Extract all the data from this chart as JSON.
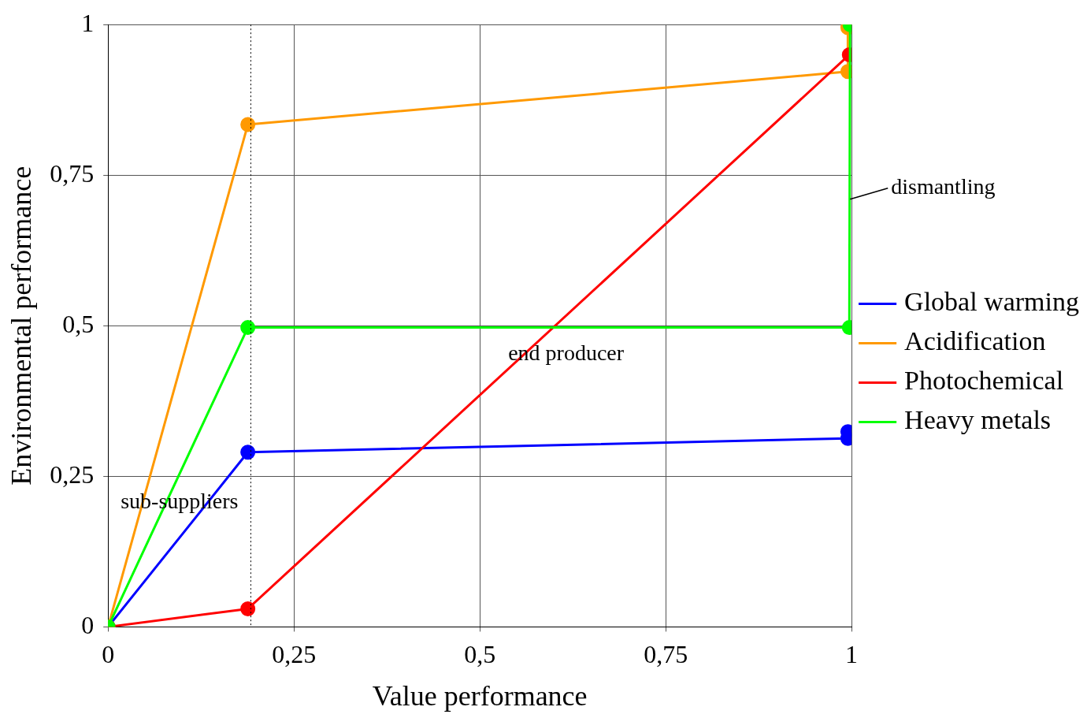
{
  "chart_data": {
    "type": "line",
    "xlabel": "Value performance",
    "ylabel": "Environmental performance",
    "xlim": [
      0,
      1
    ],
    "ylim": [
      0,
      1
    ],
    "xticks": [
      0,
      {
        "value": 0.25,
        "label": "0,25"
      },
      {
        "value": 0.5,
        "label": "0,5"
      },
      {
        "value": 0.75,
        "label": "0,75"
      },
      1
    ],
    "yticks": [
      0,
      {
        "value": 0.25,
        "label": "0,25"
      },
      {
        "value": 0.5,
        "label": "0,5"
      },
      {
        "value": 0.75,
        "label": "0,75"
      },
      1
    ],
    "grid": true,
    "legend": "right",
    "marker": "circle",
    "line_style": "solid",
    "series": [
      {
        "name": "Global warming",
        "color": "#0000ff",
        "x": [
          0,
          0.188,
          0.995,
          0.995
        ],
        "values": [
          0,
          0.29,
          0.313,
          0.324
        ]
      },
      {
        "name": "Acidification",
        "color": "#ff9900",
        "x": [
          0,
          0.188,
          0.995,
          0.995
        ],
        "values": [
          0,
          0.834,
          0.922,
          0.995
        ]
      },
      {
        "name": "Photochemical",
        "color": "#ff0000",
        "x": [
          0,
          0.188,
          0.997
        ],
        "values": [
          0,
          0.03,
          0.95
        ]
      },
      {
        "name": "Heavy metals",
        "color": "#00ff00",
        "x": [
          0,
          0.188,
          0.997,
          0.998
        ],
        "values": [
          0,
          0.497,
          0.497,
          1
        ]
      }
    ],
    "ref_lines": [
      {
        "axis": "x",
        "value": 0.192,
        "line_style": "dotted",
        "color": "#000000"
      }
    ],
    "annotations": [
      "sub-suppliers",
      "end producer",
      {
        "text": "dismantling",
        "x": 0.998,
        "y": 0.71
      }
    ]
  }
}
